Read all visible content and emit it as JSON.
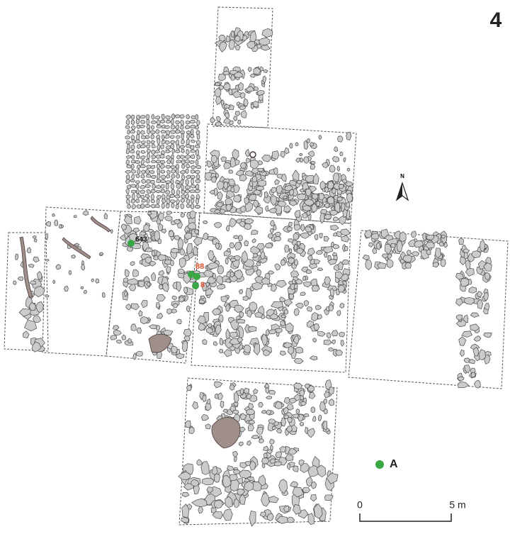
{
  "figure_number": "4",
  "north_label": "N",
  "points": [
    {
      "label": "643"
    },
    {
      "label": "88"
    },
    {
      "label": "8"
    }
  ],
  "legend": {
    "label": "A"
  },
  "scale_bar": {
    "start_label": "0",
    "end_label": "5 m"
  }
}
